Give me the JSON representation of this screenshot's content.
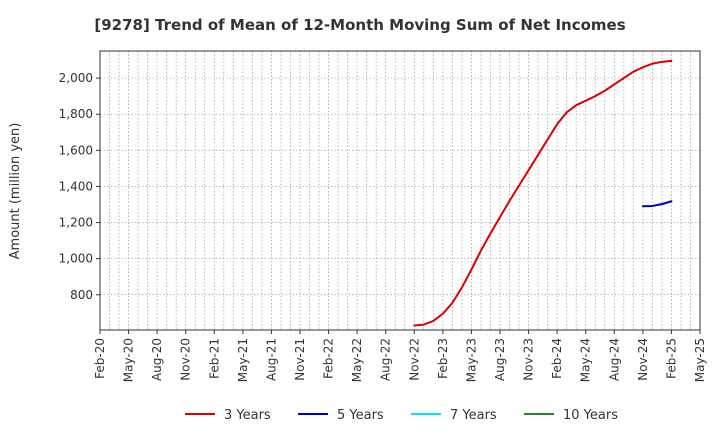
{
  "chart_data": {
    "type": "line",
    "title": "[9278]  Trend of Mean of 12-Month Moving Sum of Net Incomes",
    "xlabel": "",
    "ylabel": "Amount (million yen)",
    "x_tick_labels": [
      "Feb-20",
      "May-20",
      "Aug-20",
      "Nov-20",
      "Feb-21",
      "May-21",
      "Aug-21",
      "Nov-21",
      "Feb-22",
      "May-22",
      "Aug-22",
      "Nov-22",
      "Feb-23",
      "May-23",
      "Aug-23",
      "Nov-23",
      "Feb-24",
      "May-24",
      "Aug-24",
      "Nov-24",
      "Feb-25",
      "May-25"
    ],
    "y_ticks": [
      800,
      1000,
      1200,
      1400,
      1600,
      1800,
      2000
    ],
    "y_tick_labels": [
      "800",
      "1,000",
      "1,200",
      "1,400",
      "1,600",
      "1,800",
      "2,000"
    ],
    "ylim": [
      605,
      2150
    ],
    "x_range": [
      "2020-02",
      "2025-05"
    ],
    "grid": true,
    "legend_position": "bottom",
    "series": [
      {
        "name": "3 Years",
        "color": "#dd0000",
        "points": [
          [
            "2022-11",
            630
          ],
          [
            "2022-12",
            635
          ],
          [
            "2023-01",
            655
          ],
          [
            "2023-02",
            695
          ],
          [
            "2023-03",
            755
          ],
          [
            "2023-04",
            840
          ],
          [
            "2023-05",
            940
          ],
          [
            "2023-06",
            1045
          ],
          [
            "2023-07",
            1140
          ],
          [
            "2023-08",
            1230
          ],
          [
            "2023-09",
            1320
          ],
          [
            "2023-10",
            1405
          ],
          [
            "2023-11",
            1490
          ],
          [
            "2023-12",
            1575
          ],
          [
            "2024-01",
            1660
          ],
          [
            "2024-02",
            1745
          ],
          [
            "2024-03",
            1810
          ],
          [
            "2024-04",
            1850
          ],
          [
            "2024-05",
            1875
          ],
          [
            "2024-06",
            1900
          ],
          [
            "2024-07",
            1930
          ],
          [
            "2024-08",
            1965
          ],
          [
            "2024-09",
            2000
          ],
          [
            "2024-10",
            2035
          ],
          [
            "2024-11",
            2060
          ],
          [
            "2024-12",
            2080
          ],
          [
            "2025-01",
            2090
          ],
          [
            "2025-02",
            2095
          ]
        ]
      },
      {
        "name": "5 Years",
        "color": "#0000cc",
        "points": [
          [
            "2024-11",
            1290
          ],
          [
            "2024-12",
            1292
          ],
          [
            "2025-01",
            1302
          ],
          [
            "2025-02",
            1318
          ]
        ]
      },
      {
        "name": "7 Years",
        "color": "#00e5ee",
        "points": []
      },
      {
        "name": "10 Years",
        "color": "#228b22",
        "points": []
      }
    ]
  }
}
